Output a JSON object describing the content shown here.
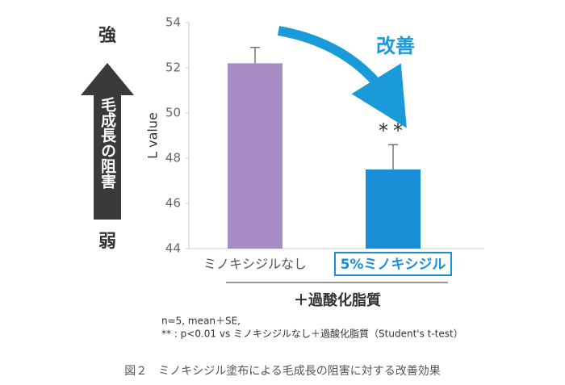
{
  "chart_data": {
    "type": "bar",
    "ylabel": "L value",
    "categories": [
      "ミノキシジルなし",
      "5%ミノキシジル"
    ],
    "values": [
      52.2,
      47.5
    ],
    "errors": [
      0.7,
      1.1
    ],
    "colors": [
      "#a68bc4",
      "#1a8fd8"
    ],
    "ylim": [
      44,
      54
    ],
    "yticks": [
      44,
      46,
      48,
      50,
      52,
      54
    ],
    "group_label": "＋過酸化脂質",
    "significance": "**",
    "improvement_label": "改善",
    "strong_label": "強",
    "weak_label": "弱",
    "arrow_label": "毛成長の阻害",
    "notes": [
      "n=5, mean＋SE,",
      "** : p<0.01 vs ミノキシジルなし＋過酸化脂質（Student's t-test）"
    ],
    "caption": "図２　ミノキシジル塗布による毛成長の阻害に対する改善効果"
  }
}
